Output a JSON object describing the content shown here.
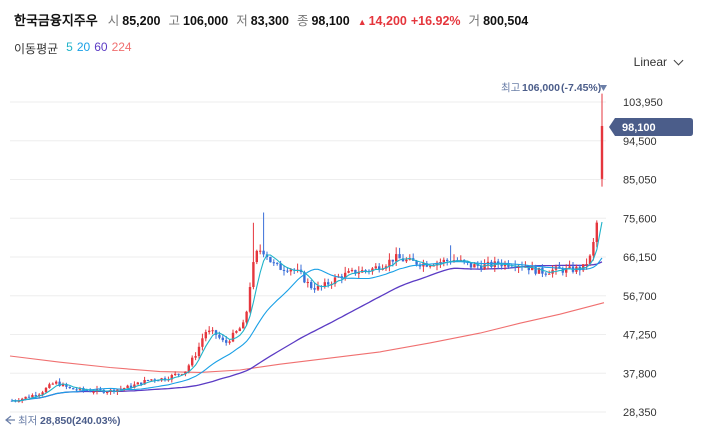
{
  "header": {
    "stock_name": "한국금융지주우",
    "open_label": "시",
    "open_value": "85,200",
    "high_label": "고",
    "high_value": "106,000",
    "low_label": "저",
    "low_value": "83,300",
    "close_label": "종",
    "close_value": "98,100",
    "change_arrow": "▲",
    "change_value": "14,200",
    "change_rate": "+16.92%",
    "volume_label": "거",
    "volume_value": "800,504"
  },
  "moving_average": {
    "title": "이동평균",
    "periods": [
      {
        "label": "5",
        "color": "#1fb3c9"
      },
      {
        "label": "20",
        "color": "#1aa0e6"
      },
      {
        "label": "60",
        "color": "#5b3bc4"
      },
      {
        "label": "224",
        "color": "#f07070"
      }
    ]
  },
  "scale_selector": {
    "label": "Linear",
    "icon": "chevron-down-icon"
  },
  "y_axis": {
    "ticks": [
      "103,950",
      "94,500",
      "85,050",
      "75,600",
      "66,150",
      "56,700",
      "47,250",
      "37,800",
      "28,350"
    ]
  },
  "current_price_tag": "98,100",
  "high_marker": {
    "label": "최고",
    "value": "106,000",
    "pct": "(-7.45%)",
    "icon": "triangle-down-icon"
  },
  "low_marker": {
    "label": "최저",
    "value": "28,850",
    "pct": "(240.03%)",
    "icon": "arrow-left-icon"
  },
  "colors": {
    "up": "#e5363d",
    "down": "#3a6fd8",
    "tag": "#4b5d8a"
  },
  "chart_data": {
    "type": "candlestick",
    "y_ticks": [
      103950,
      94500,
      85050,
      75600,
      66150,
      56700,
      47250,
      37800,
      28350
    ],
    "ylim": [
      28350,
      106000
    ],
    "last": {
      "open": 85200,
      "high": 106000,
      "low": 83300,
      "close": 98100
    },
    "series_high": 106000,
    "series_low": 28850
  }
}
